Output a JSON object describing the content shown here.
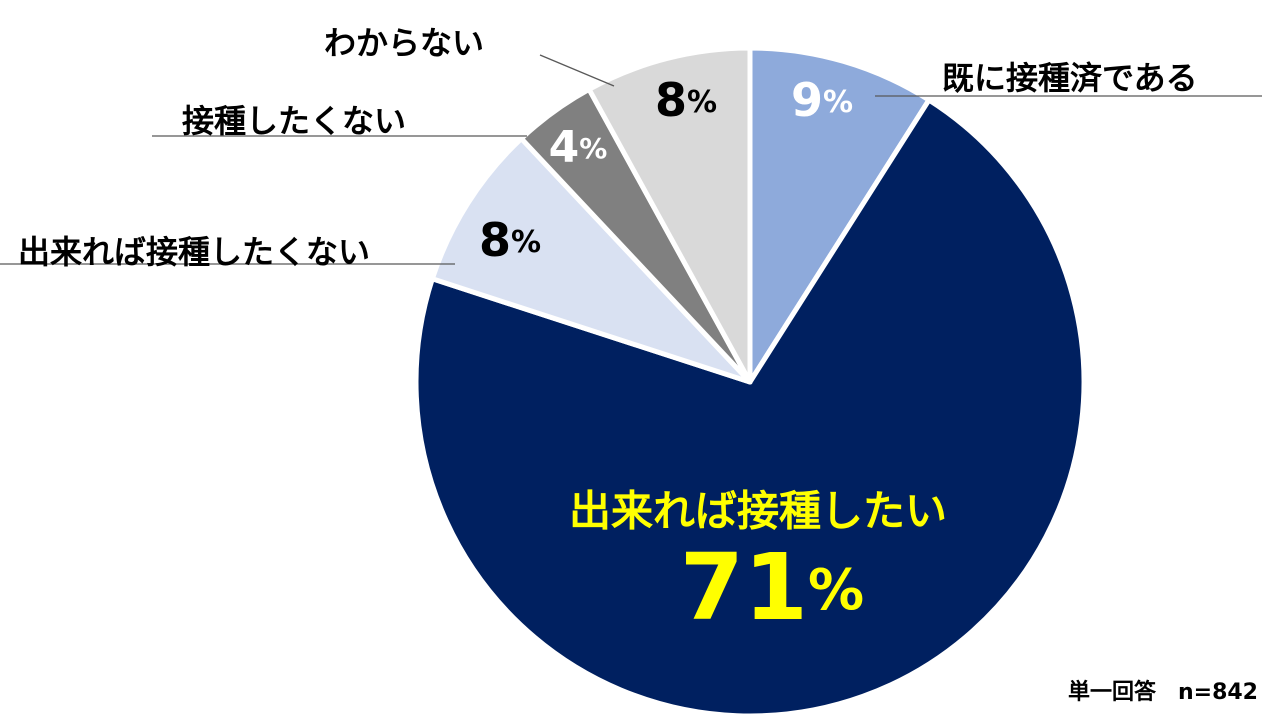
{
  "chart_data": {
    "type": "pie",
    "start_angle_deg": 0,
    "direction": "clockwise",
    "slices": [
      {
        "label": "既に接種済である",
        "value": 9,
        "pct_text": "9",
        "color": "#8eaadb",
        "pct_color": "#ffffff",
        "label_color": "#000000"
      },
      {
        "label": "出来れば接種したい",
        "value": 71,
        "pct_text": "71",
        "color": "#002060",
        "pct_color": "#ffff00",
        "label_color": "#ffff00"
      },
      {
        "label": "出来れば接種したくない",
        "value": 8,
        "pct_text": "8",
        "color": "#d9e1f2",
        "pct_color": "#000000",
        "label_color": "#000000"
      },
      {
        "label": "接種したくない",
        "value": 4,
        "pct_text": "4",
        "color": "#808080",
        "pct_color": "#ffffff",
        "label_color": "#000000"
      },
      {
        "label": "わからない",
        "value": 8,
        "pct_text": "8",
        "color": "#d9d9d9",
        "pct_color": "#000000",
        "label_color": "#000000"
      }
    ],
    "percent_symbol": "%"
  },
  "footnote": {
    "text": "単一回答　n=842"
  }
}
